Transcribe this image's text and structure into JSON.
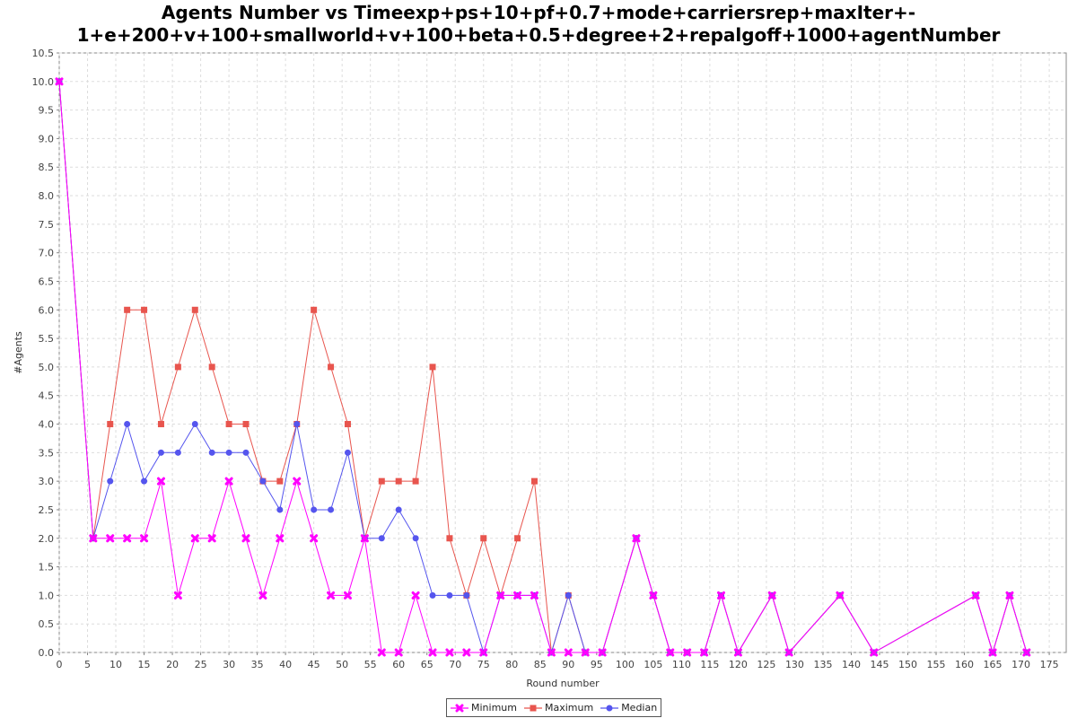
{
  "chart_data": {
    "type": "line",
    "title_lines": [
      "Agents Number vs Timeexp+ps+10+pf+0.7+mode+carriersrep+maxIter+-",
      "1+e+200+v+100+smallworld+v+100+beta+0.5+degree+2+repalgoff+1000+agentNumber"
    ],
    "xlabel": "Round number",
    "ylabel": "#Agents",
    "xlim": [
      0,
      178
    ],
    "ylim": [
      0,
      10.5
    ],
    "x_ticks": [
      0,
      5,
      10,
      15,
      20,
      25,
      30,
      35,
      40,
      45,
      50,
      55,
      60,
      65,
      70,
      75,
      80,
      85,
      90,
      95,
      100,
      105,
      110,
      115,
      120,
      125,
      130,
      135,
      140,
      145,
      150,
      155,
      160,
      165,
      170,
      175
    ],
    "y_ticks": [
      0.0,
      0.5,
      1.0,
      1.5,
      2.0,
      2.5,
      3.0,
      3.5,
      4.0,
      4.5,
      5.0,
      5.5,
      6.0,
      6.5,
      7.0,
      7.5,
      8.0,
      8.5,
      9.0,
      9.5,
      10.0,
      10.5
    ],
    "grid": true,
    "legend_position": "bottom-center",
    "series": [
      {
        "name": "Minimum",
        "color": "#ff00ff",
        "marker": "x",
        "points": [
          [
            0,
            10
          ],
          [
            6,
            2
          ],
          [
            9,
            2
          ],
          [
            12,
            2
          ],
          [
            15,
            2
          ],
          [
            18,
            3
          ],
          [
            21,
            1
          ],
          [
            24,
            2
          ],
          [
            27,
            2
          ],
          [
            30,
            3
          ],
          [
            33,
            2
          ],
          [
            36,
            1
          ],
          [
            39,
            2
          ],
          [
            42,
            3
          ],
          [
            45,
            2
          ],
          [
            48,
            1
          ],
          [
            51,
            1
          ],
          [
            54,
            2
          ],
          [
            57,
            0
          ],
          [
            60,
            0
          ],
          [
            63,
            1
          ],
          [
            66,
            0
          ],
          [
            69,
            0
          ],
          [
            72,
            0
          ],
          [
            75,
            0
          ],
          [
            78,
            1
          ],
          [
            81,
            1
          ],
          [
            84,
            1
          ],
          [
            87,
            0
          ],
          [
            90,
            0
          ],
          [
            93,
            0
          ],
          [
            96,
            0
          ],
          [
            102,
            2
          ],
          [
            105,
            1
          ],
          [
            108,
            0
          ],
          [
            111,
            0
          ],
          [
            114,
            0
          ],
          [
            117,
            1
          ],
          [
            120,
            0
          ],
          [
            126,
            1
          ],
          [
            129,
            0
          ],
          [
            138,
            1
          ],
          [
            144,
            0
          ],
          [
            162,
            1
          ],
          [
            165,
            0
          ],
          [
            168,
            1
          ],
          [
            171,
            0
          ]
        ]
      },
      {
        "name": "Maximum",
        "color": "#e8554e",
        "marker": "square",
        "points": [
          [
            0,
            10
          ],
          [
            6,
            2
          ],
          [
            9,
            4
          ],
          [
            12,
            6
          ],
          [
            15,
            6
          ],
          [
            18,
            4
          ],
          [
            21,
            5
          ],
          [
            24,
            6
          ],
          [
            27,
            5
          ],
          [
            30,
            4
          ],
          [
            33,
            4
          ],
          [
            36,
            3
          ],
          [
            39,
            3
          ],
          [
            42,
            4
          ],
          [
            45,
            6
          ],
          [
            48,
            5
          ],
          [
            51,
            4
          ],
          [
            54,
            2
          ],
          [
            57,
            3
          ],
          [
            60,
            3
          ],
          [
            63,
            3
          ],
          [
            66,
            5
          ],
          [
            69,
            2
          ],
          [
            72,
            1
          ],
          [
            75,
            2
          ],
          [
            78,
            1
          ],
          [
            81,
            2
          ],
          [
            84,
            3
          ],
          [
            87,
            0
          ],
          [
            90,
            1
          ],
          [
            93,
            0
          ],
          [
            96,
            0
          ],
          [
            102,
            2
          ],
          [
            105,
            1
          ],
          [
            108,
            0
          ],
          [
            111,
            0
          ],
          [
            114,
            0
          ],
          [
            117,
            1
          ],
          [
            120,
            0
          ],
          [
            126,
            1
          ],
          [
            129,
            0
          ],
          [
            138,
            1
          ],
          [
            144,
            0
          ],
          [
            162,
            1
          ],
          [
            165,
            0
          ],
          [
            168,
            1
          ],
          [
            171,
            0
          ]
        ]
      },
      {
        "name": "Median",
        "color": "#5555ee",
        "marker": "circle",
        "points": [
          [
            0,
            10
          ],
          [
            6,
            2
          ],
          [
            9,
            3
          ],
          [
            12,
            4
          ],
          [
            15,
            3
          ],
          [
            18,
            3.5
          ],
          [
            21,
            3.5
          ],
          [
            24,
            4
          ],
          [
            27,
            3.5
          ],
          [
            30,
            3.5
          ],
          [
            33,
            3.5
          ],
          [
            36,
            3
          ],
          [
            39,
            2.5
          ],
          [
            42,
            4
          ],
          [
            45,
            2.5
          ],
          [
            48,
            2.5
          ],
          [
            51,
            3.5
          ],
          [
            54,
            2
          ],
          [
            57,
            2
          ],
          [
            60,
            2.5
          ],
          [
            63,
            2
          ],
          [
            66,
            1
          ],
          [
            69,
            1
          ],
          [
            72,
            1
          ],
          [
            75,
            0
          ],
          [
            78,
            1
          ],
          [
            81,
            1
          ],
          [
            84,
            1
          ],
          [
            87,
            0
          ],
          [
            90,
            1
          ],
          [
            93,
            0
          ],
          [
            96,
            0
          ],
          [
            102,
            2
          ],
          [
            105,
            1
          ],
          [
            108,
            0
          ],
          [
            111,
            0
          ],
          [
            114,
            0
          ],
          [
            117,
            1
          ],
          [
            120,
            0
          ],
          [
            126,
            1
          ],
          [
            129,
            0
          ],
          [
            138,
            1
          ],
          [
            144,
            0
          ],
          [
            162,
            1
          ],
          [
            165,
            0
          ],
          [
            168,
            1
          ],
          [
            171,
            0
          ]
        ]
      }
    ]
  }
}
